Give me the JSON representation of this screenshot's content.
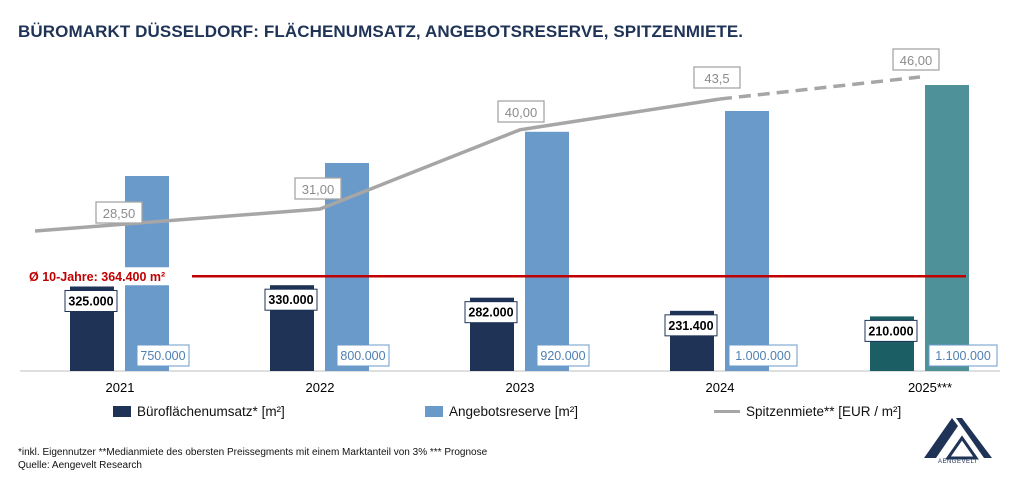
{
  "title": "BÜROMARKT DÜSSELDORF: FLÄCHENUMSATZ, ANGEBOTSRESERVE, SPITZENMIETE.",
  "chart_data": {
    "type": "bar",
    "categories": [
      "2021",
      "2022",
      "2023",
      "2024",
      "2025***"
    ],
    "series": [
      {
        "name": "Büroflächenumsatz* [m²]",
        "type": "bar",
        "values": [
          325000,
          330000,
          282000,
          231400,
          210000
        ],
        "labels": [
          "325.000",
          "330.000",
          "282.000",
          "231.400",
          "210.000"
        ]
      },
      {
        "name": "Angebotsreserve [m²]",
        "type": "bar",
        "values": [
          750000,
          800000,
          920000,
          1000000,
          1100000
        ],
        "labels": [
          "750.000",
          "800.000",
          "920.000",
          "1.000.000",
          "1.100.000"
        ]
      },
      {
        "name": "Spitzenmiete** [EUR / m²]",
        "type": "line",
        "values": [
          28.5,
          31.0,
          40.0,
          43.5,
          46.0
        ],
        "labels": [
          "28,50",
          "31,00",
          "40,00",
          "43,5",
          "46,00"
        ],
        "dashed_last_segment": true
      }
    ],
    "reference_line": {
      "label": "Ø 10-Jahre: 364.400 m²",
      "value": 364400
    },
    "ylim_primary": [
      0,
      1100000
    ],
    "ylim_secondary": [
      0,
      46
    ],
    "grid": false,
    "legend_position": "bottom",
    "colors": {
      "turnover": "#1f3357",
      "turnover_forecast": "#1b5e63",
      "reserve": "#6a9ac9",
      "reserve_forecast": "#4f9199",
      "rent_line": "#a6a6a6",
      "reference_line": "#c00000"
    }
  },
  "legend": {
    "turnover": "Büroflächenumsatz* [m²]",
    "reserve": "Angebotsreserve [m²]",
    "rent": "Spitzenmiete** [EUR / m²]"
  },
  "footnote": {
    "line1": "*inkl. Eigennutzer **Medianmiete des obersten Preissegments mit einem Marktanteil von 3% *** Prognose",
    "line2": "Quelle: Aengevelt Research"
  },
  "logo": {
    "text": "AENGEVELT"
  }
}
